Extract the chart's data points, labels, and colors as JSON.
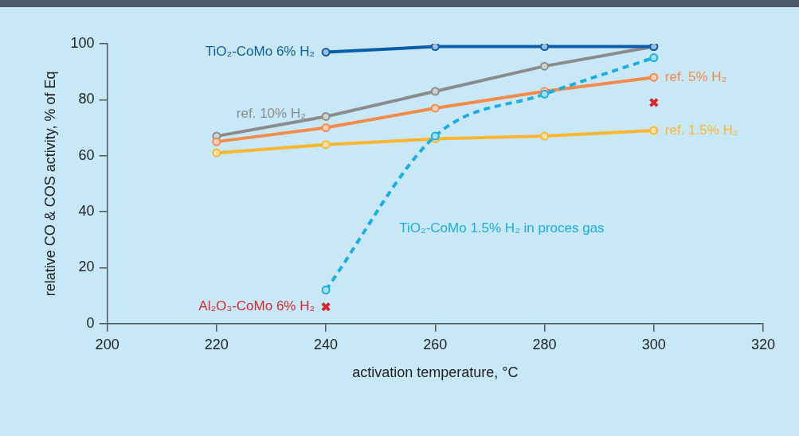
{
  "chart_data": {
    "type": "line",
    "xlabel": "activation temperature, °C",
    "ylabel": "relative CO & COS activity, % of Eq",
    "xlim": [
      200,
      320
    ],
    "xticks": [
      200,
      220,
      240,
      260,
      280,
      300,
      320
    ],
    "ylim": [
      0,
      100
    ],
    "yticks": [
      0,
      20,
      40,
      60,
      80,
      100
    ],
    "grid": false,
    "legend": false,
    "marker": "circle",
    "line_style": "solid",
    "series": [
      {
        "name": "ref. 10% H₂",
        "color": "#8c8c8c",
        "x": [
          220,
          240,
          260,
          280,
          300
        ],
        "values": [
          67,
          74,
          83,
          92,
          99
        ]
      },
      {
        "name": "ref. 5% H₂",
        "color": "#f58a4b",
        "x": [
          220,
          240,
          260,
          280,
          300
        ],
        "values": [
          65,
          70,
          77,
          83,
          88
        ]
      },
      {
        "name": "ref. 1.5% H₂",
        "color": "#fbb631",
        "x": [
          220,
          240,
          260,
          280,
          300
        ],
        "values": [
          61,
          64,
          66,
          67,
          69
        ]
      },
      {
        "name": "TiO₂-CoMo 6% H₂",
        "color": "#0a5ea8",
        "x": [
          240,
          260,
          280,
          300
        ],
        "values": [
          97,
          99,
          99,
          99
        ]
      },
      {
        "name": "TiO₂-CoMo 1.5% H₂ in proces gas",
        "color": "#1aaee5",
        "line_style": "dashed",
        "x": [
          240,
          260,
          280,
          300
        ],
        "values": [
          12,
          67,
          82,
          95
        ]
      },
      {
        "name": "Al₂O₃-CoMo 6% H₂",
        "color": "#d7262e",
        "type": "scatter",
        "marker": "cross",
        "x": [
          240,
          300
        ],
        "values": [
          6,
          79
        ]
      }
    ]
  }
}
